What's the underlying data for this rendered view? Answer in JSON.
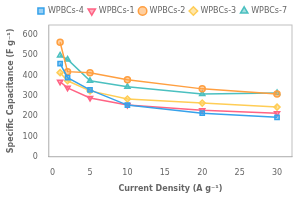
{
  "chart_data": {
    "type": "line",
    "x": [
      1,
      2,
      5,
      10,
      20,
      30
    ],
    "series": [
      {
        "name": "WPBCs-4",
        "marker": "square",
        "values": [
          460,
          390,
          330,
          255,
          215,
          195
        ]
      },
      {
        "name": "WPBCs-1",
        "marker": "triangle-down",
        "values": [
          370,
          340,
          290,
          255,
          230,
          215
        ]
      },
      {
        "name": "WPBCs-2",
        "marker": "circle",
        "values": [
          565,
          420,
          415,
          380,
          335,
          310
        ]
      },
      {
        "name": "WPBCs-3",
        "marker": "diamond",
        "values": [
          415,
          375,
          325,
          285,
          265,
          245
        ]
      },
      {
        "name": "WPBCs-7",
        "marker": "triangle-up",
        "values": [
          500,
          480,
          375,
          345,
          310,
          315
        ]
      }
    ],
    "xlabel": "Current Density (A g⁻¹)",
    "ylabel": "Specific Capacitance (F g⁻¹)",
    "xlim": [
      -0.5,
      32
    ],
    "ylim": [
      0,
      650
    ],
    "xticks": [
      0,
      5,
      10,
      15,
      20,
      25,
      30
    ],
    "yticks": [
      0,
      100,
      200,
      300,
      400,
      500,
      600
    ],
    "grid": false,
    "legend": "upper right"
  }
}
